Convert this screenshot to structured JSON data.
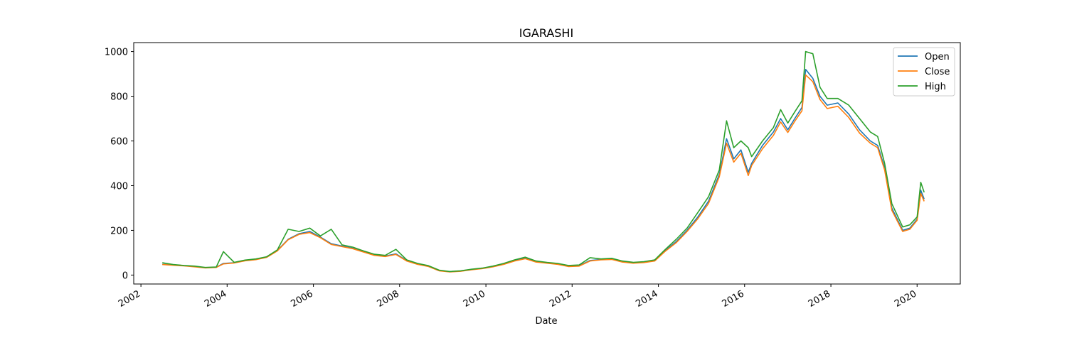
{
  "chart_data": {
    "type": "line",
    "title": "IGARASHI",
    "xlabel": "Date",
    "ylabel": "",
    "xlim": [
      "2001-11-01",
      "2021-01-01"
    ],
    "ylim": [
      -40,
      1040
    ],
    "x_ticks": [
      "2002",
      "2004",
      "2006",
      "2008",
      "2010",
      "2012",
      "2014",
      "2016",
      "2018",
      "2020"
    ],
    "y_ticks": [
      0,
      200,
      400,
      600,
      800,
      1000
    ],
    "legend_position": "top-right",
    "x": [
      "2002-07-01",
      "2002-10-01",
      "2003-01-01",
      "2003-04-01",
      "2003-07-01",
      "2003-10-01",
      "2003-12-01",
      "2004-03-01",
      "2004-06-01",
      "2004-09-01",
      "2004-12-01",
      "2005-03-01",
      "2005-06-01",
      "2005-09-01",
      "2005-12-01",
      "2006-03-01",
      "2006-06-01",
      "2006-09-01",
      "2006-12-01",
      "2007-03-01",
      "2007-06-01",
      "2007-09-01",
      "2007-12-01",
      "2008-03-01",
      "2008-06-01",
      "2008-09-01",
      "2008-12-01",
      "2009-03-01",
      "2009-06-01",
      "2009-09-01",
      "2009-12-01",
      "2010-03-01",
      "2010-06-01",
      "2010-09-01",
      "2010-12-01",
      "2011-03-01",
      "2011-06-01",
      "2011-09-01",
      "2011-12-01",
      "2012-03-01",
      "2012-06-01",
      "2012-09-01",
      "2012-12-01",
      "2013-03-01",
      "2013-06-01",
      "2013-09-01",
      "2013-12-01",
      "2014-03-01",
      "2014-06-01",
      "2014-09-01",
      "2014-12-01",
      "2015-03-01",
      "2015-06-01",
      "2015-08-01",
      "2015-10-01",
      "2015-12-01",
      "2016-02-01",
      "2016-03-01",
      "2016-06-01",
      "2016-09-01",
      "2016-11-01",
      "2017-01-01",
      "2017-03-01",
      "2017-05-01",
      "2017-06-01",
      "2017-08-01",
      "2017-10-01",
      "2017-12-01",
      "2018-03-01",
      "2018-06-01",
      "2018-09-01",
      "2018-12-01",
      "2019-02-01",
      "2019-04-01",
      "2019-06-01",
      "2019-09-01",
      "2019-11-01",
      "2020-01-01",
      "2020-02-01",
      "2020-03-01"
    ],
    "series": [
      {
        "name": "Open",
        "color": "#1f77b4",
        "values": [
          48,
          45,
          42,
          38,
          33,
          35,
          52,
          55,
          65,
          70,
          80,
          110,
          160,
          185,
          195,
          170,
          140,
          130,
          120,
          105,
          90,
          85,
          95,
          65,
          50,
          40,
          20,
          15,
          18,
          25,
          30,
          38,
          50,
          65,
          75,
          60,
          55,
          50,
          40,
          42,
          65,
          70,
          72,
          60,
          55,
          58,
          65,
          110,
          150,
          200,
          260,
          330,
          450,
          610,
          520,
          560,
          460,
          500,
          580,
          640,
          700,
          650,
          700,
          750,
          920,
          880,
          800,
          760,
          770,
          720,
          650,
          600,
          580,
          480,
          300,
          200,
          210,
          250,
          380,
          340
        ]
      },
      {
        "name": "Close",
        "color": "#ff7f0e",
        "values": [
          47,
          44,
          41,
          37,
          32,
          34,
          50,
          54,
          64,
          69,
          79,
          108,
          158,
          182,
          190,
          167,
          137,
          127,
          118,
          103,
          88,
          83,
          92,
          63,
          48,
          38,
          19,
          14,
          17,
          24,
          29,
          37,
          48,
          63,
          73,
          58,
          53,
          48,
          38,
          40,
          63,
          68,
          70,
          58,
          53,
          56,
          63,
          107,
          145,
          195,
          252,
          320,
          440,
          590,
          505,
          545,
          445,
          490,
          565,
          625,
          685,
          638,
          688,
          735,
          895,
          865,
          785,
          745,
          755,
          705,
          635,
          590,
          570,
          470,
          290,
          195,
          205,
          245,
          365,
          330
        ]
      },
      {
        "name": "High",
        "color": "#2ca02c",
        "values": [
          55,
          47,
          43,
          40,
          34,
          36,
          105,
          57,
          67,
          72,
          82,
          112,
          205,
          195,
          210,
          175,
          205,
          135,
          125,
          108,
          93,
          88,
          115,
          68,
          52,
          42,
          22,
          16,
          19,
          26,
          31,
          40,
          52,
          68,
          80,
          63,
          57,
          52,
          43,
          45,
          78,
          72,
          75,
          63,
          57,
          60,
          68,
          115,
          160,
          210,
          280,
          350,
          470,
          690,
          570,
          600,
          570,
          530,
          600,
          660,
          740,
          680,
          730,
          780,
          1000,
          990,
          840,
          790,
          790,
          760,
          700,
          640,
          620,
          500,
          320,
          215,
          225,
          260,
          415,
          370
        ]
      }
    ]
  }
}
